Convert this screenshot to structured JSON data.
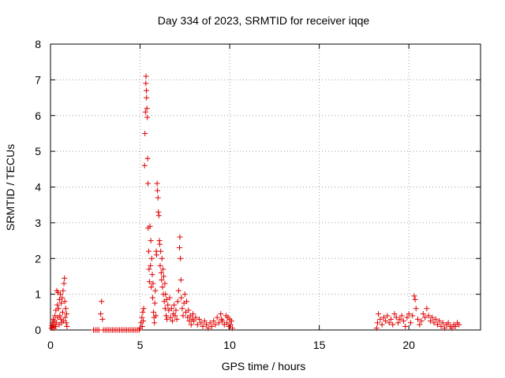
{
  "chart_data": {
    "type": "scatter",
    "title": "Day 334 of 2023, SRMTID for receiver iqqe",
    "xlabel": "GPS time / hours",
    "ylabel": "SRMTID / TECUs",
    "xlim": [
      0,
      24
    ],
    "ylim": [
      0,
      8
    ],
    "grid": true,
    "x_ticks": [
      0,
      5,
      10,
      15,
      20
    ],
    "x_tick_labels": [
      "0",
      "5",
      "10",
      "15",
      "20"
    ],
    "y_ticks": [
      0,
      1,
      2,
      3,
      4,
      5,
      6,
      7,
      8
    ],
    "y_tick_labels": [
      "0",
      "1",
      "2",
      "3",
      "4",
      "5",
      "6",
      "7",
      "8"
    ],
    "marker": "+",
    "colors": {
      "points": "#e00000",
      "grid": "#a0a0a0",
      "axes": "#000000"
    },
    "series": [
      {
        "name": "SRMTID",
        "points": [
          [
            0.05,
            0.05
          ],
          [
            0.08,
            0.12
          ],
          [
            0.1,
            0.2
          ],
          [
            0.12,
            0.08
          ],
          [
            0.15,
            0.3
          ],
          [
            0.18,
            0.15
          ],
          [
            0.2,
            0.05
          ],
          [
            0.22,
            0.25
          ],
          [
            0.25,
            0.4
          ],
          [
            0.28,
            0.1
          ],
          [
            0.3,
            0.55
          ],
          [
            0.32,
            0.2
          ],
          [
            0.35,
            1.1
          ],
          [
            0.38,
            0.7
          ],
          [
            0.4,
            0.35
          ],
          [
            0.42,
            1.05
          ],
          [
            0.45,
            0.6
          ],
          [
            0.48,
            0.15
          ],
          [
            0.5,
            0.85
          ],
          [
            0.52,
            0.4
          ],
          [
            0.55,
            1.0
          ],
          [
            0.58,
            0.3
          ],
          [
            0.6,
            0.75
          ],
          [
            0.62,
            0.2
          ],
          [
            0.65,
            0.9
          ],
          [
            0.68,
            0.5
          ],
          [
            0.7,
            1.1
          ],
          [
            0.72,
            0.25
          ],
          [
            0.75,
            1.3
          ],
          [
            0.78,
            1.45
          ],
          [
            0.8,
            0.8
          ],
          [
            0.82,
            0.35
          ],
          [
            0.85,
            0.6
          ],
          [
            0.88,
            0.2
          ],
          [
            0.9,
            0.45
          ],
          [
            0.92,
            0.1
          ],
          [
            2.4,
            0.0
          ],
          [
            2.5,
            0.0
          ],
          [
            2.6,
            0.0
          ],
          [
            2.7,
            0.0
          ],
          [
            2.8,
            0.45
          ],
          [
            2.85,
            0.8
          ],
          [
            2.9,
            0.3
          ],
          [
            2.95,
            0.0
          ],
          [
            3.05,
            0.0
          ],
          [
            3.15,
            0.0
          ],
          [
            3.25,
            0.0
          ],
          [
            3.35,
            0.0
          ],
          [
            3.45,
            0.0
          ],
          [
            3.55,
            0.0
          ],
          [
            3.65,
            0.0
          ],
          [
            3.75,
            0.0
          ],
          [
            3.85,
            0.0
          ],
          [
            3.95,
            0.0
          ],
          [
            4.05,
            0.0
          ],
          [
            4.15,
            0.0
          ],
          [
            4.25,
            0.0
          ],
          [
            4.35,
            0.0
          ],
          [
            4.45,
            0.0
          ],
          [
            4.55,
            0.0
          ],
          [
            4.65,
            0.0
          ],
          [
            4.75,
            0.0
          ],
          [
            4.85,
            0.0
          ],
          [
            4.95,
            0.0
          ],
          [
            5.0,
            0.05
          ],
          [
            5.05,
            0.2
          ],
          [
            5.1,
            0.35
          ],
          [
            5.12,
            0.1
          ],
          [
            5.15,
            0.5
          ],
          [
            5.18,
            0.25
          ],
          [
            5.2,
            0.6
          ],
          [
            5.25,
            4.6
          ],
          [
            5.27,
            5.5
          ],
          [
            5.3,
            6.1
          ],
          [
            5.32,
            6.9
          ],
          [
            5.33,
            7.1
          ],
          [
            5.35,
            6.7
          ],
          [
            5.36,
            6.5
          ],
          [
            5.38,
            6.2
          ],
          [
            5.4,
            5.95
          ],
          [
            5.42,
            4.8
          ],
          [
            5.44,
            4.1
          ],
          [
            5.45,
            2.85
          ],
          [
            5.48,
            2.2
          ],
          [
            5.5,
            1.7
          ],
          [
            5.52,
            1.35
          ],
          [
            5.55,
            2.9
          ],
          [
            5.58,
            1.8
          ],
          [
            5.6,
            2.5
          ],
          [
            5.62,
            1.2
          ],
          [
            5.65,
            2.0
          ],
          [
            5.68,
            1.55
          ],
          [
            5.7,
            0.9
          ],
          [
            5.72,
            1.3
          ],
          [
            5.75,
            0.5
          ],
          [
            5.78,
            0.35
          ],
          [
            5.8,
            0.2
          ],
          [
            5.82,
            0.75
          ],
          [
            5.85,
            1.1
          ],
          [
            5.88,
            0.4
          ],
          [
            5.9,
            2.2
          ],
          [
            5.92,
            2.1
          ],
          [
            5.95,
            4.1
          ],
          [
            5.97,
            3.9
          ],
          [
            6.0,
            3.7
          ],
          [
            6.02,
            3.3
          ],
          [
            6.05,
            3.2
          ],
          [
            6.08,
            2.5
          ],
          [
            6.1,
            2.4
          ],
          [
            6.12,
            1.8
          ],
          [
            6.15,
            2.2
          ],
          [
            6.18,
            1.6
          ],
          [
            6.2,
            1.4
          ],
          [
            6.22,
            2.0
          ],
          [
            6.25,
            1.2
          ],
          [
            6.28,
            1.7
          ],
          [
            6.3,
            1.0
          ],
          [
            6.32,
            1.5
          ],
          [
            6.35,
            0.8
          ],
          [
            6.38,
            1.3
          ],
          [
            6.4,
            0.6
          ],
          [
            6.42,
            1.0
          ],
          [
            6.45,
            0.4
          ],
          [
            6.48,
            0.85
          ],
          [
            6.5,
            0.3
          ],
          [
            6.55,
            0.7
          ],
          [
            6.6,
            0.55
          ],
          [
            6.65,
            0.9
          ],
          [
            6.7,
            0.35
          ],
          [
            6.75,
            0.6
          ],
          [
            6.8,
            0.25
          ],
          [
            6.85,
            0.45
          ],
          [
            6.9,
            0.7
          ],
          [
            6.95,
            0.4
          ],
          [
            7.0,
            0.55
          ],
          [
            7.05,
            0.3
          ],
          [
            7.1,
            0.8
          ],
          [
            7.15,
            1.1
          ],
          [
            7.2,
            2.3
          ],
          [
            7.22,
            2.6
          ],
          [
            7.25,
            2.0
          ],
          [
            7.28,
            1.4
          ],
          [
            7.3,
            0.9
          ],
          [
            7.35,
            0.6
          ],
          [
            7.4,
            0.4
          ],
          [
            7.45,
            0.75
          ],
          [
            7.5,
            1.0
          ],
          [
            7.55,
            0.5
          ],
          [
            7.6,
            0.8
          ],
          [
            7.65,
            0.35
          ],
          [
            7.7,
            0.55
          ],
          [
            7.75,
            0.25
          ],
          [
            7.8,
            0.4
          ],
          [
            7.85,
            0.15
          ],
          [
            7.9,
            0.3
          ],
          [
            7.95,
            0.45
          ],
          [
            8.0,
            0.25
          ],
          [
            8.1,
            0.35
          ],
          [
            8.2,
            0.15
          ],
          [
            8.3,
            0.3
          ],
          [
            8.4,
            0.2
          ],
          [
            8.5,
            0.1
          ],
          [
            8.6,
            0.25
          ],
          [
            8.7,
            0.15
          ],
          [
            8.8,
            0.05
          ],
          [
            8.9,
            0.2
          ],
          [
            9.0,
            0.1
          ],
          [
            9.1,
            0.25
          ],
          [
            9.2,
            0.15
          ],
          [
            9.3,
            0.35
          ],
          [
            9.4,
            0.2
          ],
          [
            9.5,
            0.45
          ],
          [
            9.55,
            0.3
          ],
          [
            9.6,
            0.25
          ],
          [
            9.7,
            0.15
          ],
          [
            9.8,
            0.4
          ],
          [
            9.85,
            0.2
          ],
          [
            9.9,
            0.35
          ],
          [
            9.95,
            0.1
          ],
          [
            10.0,
            0.3
          ],
          [
            10.05,
            0.15
          ],
          [
            10.1,
            0.25
          ],
          [
            10.15,
            0.05
          ],
          [
            18.2,
            0.05
          ],
          [
            18.25,
            0.2
          ],
          [
            18.3,
            0.45
          ],
          [
            18.4,
            0.3
          ],
          [
            18.5,
            0.15
          ],
          [
            18.6,
            0.35
          ],
          [
            18.7,
            0.25
          ],
          [
            18.8,
            0.4
          ],
          [
            18.9,
            0.2
          ],
          [
            19.0,
            0.3
          ],
          [
            19.1,
            0.15
          ],
          [
            19.2,
            0.45
          ],
          [
            19.3,
            0.35
          ],
          [
            19.4,
            0.2
          ],
          [
            19.5,
            0.3
          ],
          [
            19.6,
            0.4
          ],
          [
            19.7,
            0.25
          ],
          [
            19.8,
            0.1
          ],
          [
            19.9,
            0.35
          ],
          [
            20.0,
            0.45
          ],
          [
            20.1,
            0.2
          ],
          [
            20.2,
            0.4
          ],
          [
            20.3,
            0.95
          ],
          [
            20.35,
            0.85
          ],
          [
            20.4,
            0.6
          ],
          [
            20.5,
            0.3
          ],
          [
            20.6,
            0.15
          ],
          [
            20.7,
            0.25
          ],
          [
            20.8,
            0.45
          ],
          [
            20.9,
            0.35
          ],
          [
            21.0,
            0.6
          ],
          [
            21.1,
            0.4
          ],
          [
            21.2,
            0.25
          ],
          [
            21.3,
            0.35
          ],
          [
            21.4,
            0.2
          ],
          [
            21.5,
            0.3
          ],
          [
            21.6,
            0.15
          ],
          [
            21.7,
            0.25
          ],
          [
            21.8,
            0.1
          ],
          [
            21.9,
            0.2
          ],
          [
            22.0,
            0.05
          ],
          [
            22.1,
            0.15
          ],
          [
            22.2,
            0.2
          ],
          [
            22.3,
            0.1
          ],
          [
            22.4,
            0.05
          ],
          [
            22.5,
            0.15
          ],
          [
            22.6,
            0.1
          ],
          [
            22.7,
            0.2
          ],
          [
            22.8,
            0.15
          ]
        ]
      }
    ]
  }
}
